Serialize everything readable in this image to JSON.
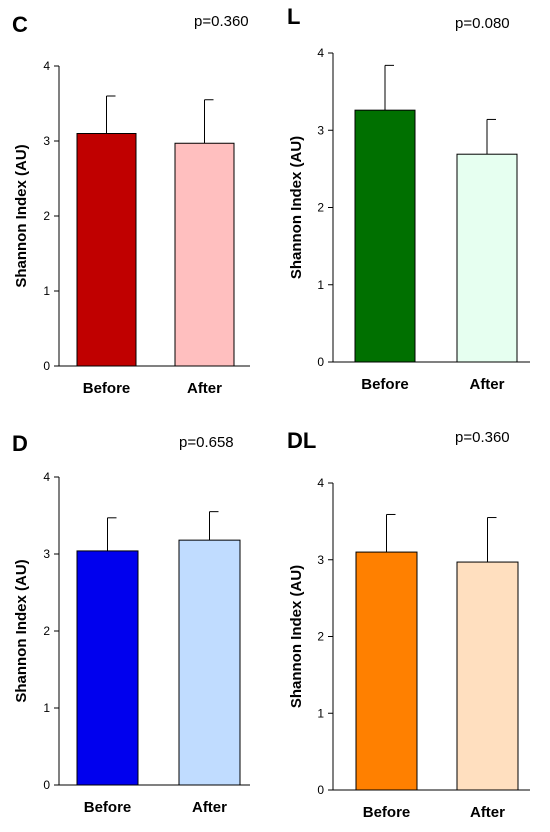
{
  "chart_data": [
    {
      "type": "bar",
      "panel_label": "C",
      "p_value": "p=0.360",
      "ylabel": "Shannon Index (AU)",
      "categories": [
        "Before",
        "After"
      ],
      "values": [
        3.1,
        2.97
      ],
      "errors": [
        0.5,
        0.58
      ],
      "ylim": [
        0,
        4
      ],
      "yticks": [
        0,
        1,
        2,
        3,
        4
      ],
      "colors": [
        "#c00000",
        "#ffbfbf"
      ]
    },
    {
      "type": "bar",
      "panel_label": "L",
      "p_value": "p=0.080",
      "ylabel": "Shannon Index (AU)",
      "categories": [
        "Before",
        "After"
      ],
      "values": [
        3.26,
        2.69
      ],
      "errors": [
        0.58,
        0.45
      ],
      "ylim": [
        0,
        4
      ],
      "yticks": [
        0,
        1,
        2,
        3,
        4
      ],
      "colors": [
        "#007000",
        "#e6fff0"
      ]
    },
    {
      "type": "bar",
      "panel_label": "D",
      "p_value": "p=0.658",
      "ylabel": "Shannon Index (AU)",
      "categories": [
        "Before",
        "After"
      ],
      "values": [
        3.04,
        3.18
      ],
      "errors": [
        0.43,
        0.37
      ],
      "ylim": [
        0,
        4
      ],
      "yticks": [
        0,
        1,
        2,
        3,
        4
      ],
      "colors": [
        "#0000ee",
        "#c0dcff"
      ]
    },
    {
      "type": "bar",
      "panel_label": "DL",
      "p_value": "p=0.360",
      "ylabel": "Shannon Index (AU)",
      "categories": [
        "Before",
        "After"
      ],
      "values": [
        3.1,
        2.97
      ],
      "errors": [
        0.49,
        0.58
      ],
      "ylim": [
        0,
        4
      ],
      "yticks": [
        0,
        1,
        2,
        3,
        4
      ],
      "colors": [
        "#ff8000",
        "#ffdfbf"
      ]
    }
  ]
}
